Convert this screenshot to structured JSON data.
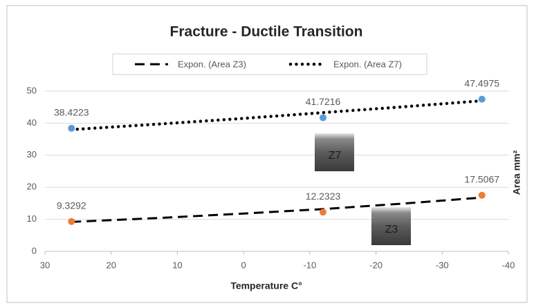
{
  "chart_data": {
    "type": "scatter",
    "title": "Fracture - Ductile Transition",
    "x_label": "Temperature C°",
    "y_label": "Area mm²",
    "xlim": [
      30,
      -40
    ],
    "xticks": [
      30,
      20,
      10,
      0,
      -10,
      -20,
      -30,
      -40
    ],
    "ylim": [
      0,
      50
    ],
    "yticks": [
      0,
      10,
      20,
      30,
      40,
      50
    ],
    "grid": true,
    "legend": "top",
    "series": [
      {
        "color": "#ed7d31",
        "style": "points",
        "x": [
          26,
          -12,
          -36
        ],
        "values": [
          9.3292,
          12.2323,
          17.5067
        ]
      },
      {
        "color": "#5b9bd5",
        "style": "points",
        "x": [
          26,
          -12,
          -36
        ],
        "values": [
          38.4223,
          41.7216,
          47.4975
        ]
      },
      {
        "name": "Expon. (Area Z3)",
        "color": "#000000",
        "style": "dashed",
        "x": [
          26,
          13,
          0,
          -12,
          -24,
          -36
        ],
        "values": [
          9.2,
          10.4,
          11.8,
          13.2,
          14.9,
          16.8
        ]
      },
      {
        "name": "Expon. (Area Z7)",
        "color": "#000000",
        "style": "dotted",
        "x": [
          26,
          13,
          0,
          -12,
          -24,
          -36
        ],
        "values": [
          38,
          39.7,
          41.5,
          43.3,
          45.1,
          47.0
        ]
      }
    ],
    "annotations": [
      "Z7",
      "Z3"
    ]
  }
}
